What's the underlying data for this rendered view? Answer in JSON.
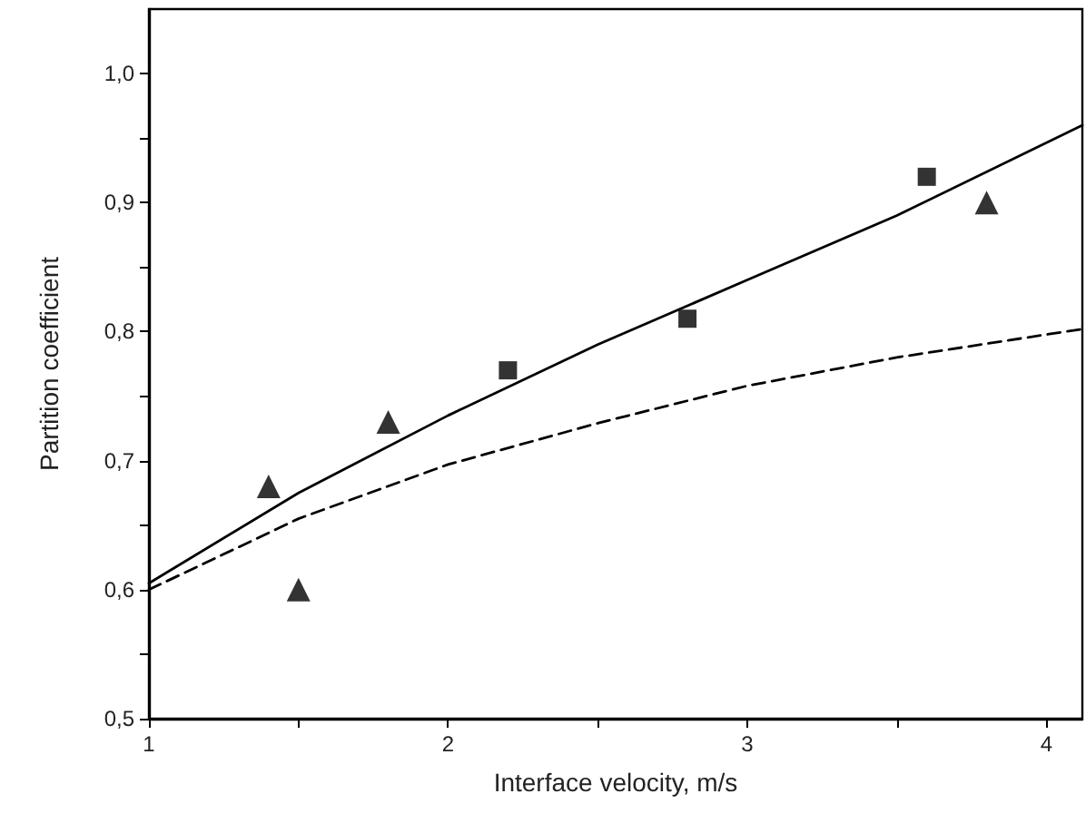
{
  "chart_data": {
    "type": "scatter",
    "xlabel": "Interface velocity, m/s",
    "ylabel": "Partition coefficient",
    "xlim": [
      1,
      4.12
    ],
    "ylim": [
      0.5,
      1.05
    ],
    "xticks": [
      1,
      {
        "value": 1.5,
        "label": null
      },
      2,
      {
        "value": 2.5,
        "label": null
      },
      3,
      {
        "value": 3.5,
        "label": null
      },
      4
    ],
    "yticks": [
      {
        "value": 0.5,
        "label": "0,5"
      },
      {
        "value": 0.55,
        "label": null
      },
      {
        "value": 0.6,
        "label": "0,6"
      },
      {
        "value": 0.65,
        "label": null
      },
      {
        "value": 0.7,
        "label": "0,7"
      },
      {
        "value": 0.75,
        "label": null
      },
      {
        "value": 0.8,
        "label": "0,8"
      },
      {
        "value": 0.85,
        "label": null
      },
      {
        "value": 0.9,
        "label": "0,9"
      },
      {
        "value": 0.95,
        "label": null
      },
      {
        "value": 1.0,
        "label": "1,0"
      }
    ],
    "grid": false,
    "series": [
      {
        "type": "line",
        "color": "#000000",
        "marker": "none",
        "line_style": "solid",
        "x": [
          1,
          1.5,
          2,
          2.5,
          3,
          3.5,
          4.12
        ],
        "values": [
          0.605,
          0.675,
          0.735,
          0.79,
          0.84,
          0.89,
          0.96
        ]
      },
      {
        "type": "line",
        "color": "#000000",
        "marker": "none",
        "line_style": "dashed",
        "x": [
          1,
          1.5,
          2,
          2.5,
          3,
          3.5,
          4.12
        ],
        "values": [
          0.6,
          0.655,
          0.697,
          0.729,
          0.758,
          0.78,
          0.802
        ]
      },
      {
        "color": "#000000",
        "marker": "triangle",
        "x": [
          1.4,
          1.5,
          1.8,
          3.8
        ],
        "values": [
          0.68,
          0.6,
          0.73,
          0.9
        ]
      },
      {
        "color": "#000000",
        "marker": "square",
        "x": [
          2.2,
          2.8,
          3.6
        ],
        "values": [
          0.77,
          0.81,
          0.92
        ]
      }
    ]
  }
}
